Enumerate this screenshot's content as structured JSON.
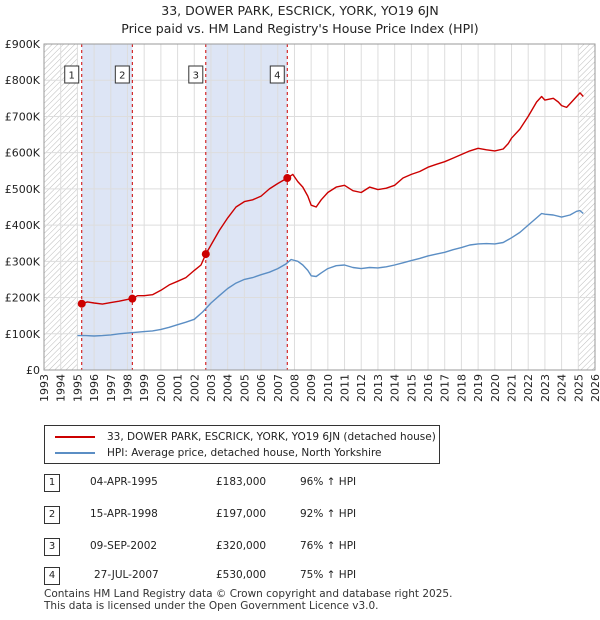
{
  "title_line1": "33, DOWER PARK, ESCRICK, YORK, YO19 6JN",
  "title_line2": "Price paid vs. HM Land Registry's House Price Index (HPI)",
  "legend": {
    "property_label": "33, DOWER PARK, ESCRICK, YORK, YO19 6JN (detached house)",
    "hpi_label": "HPI: Average price, detached house, North Yorkshire"
  },
  "colors": {
    "property": "#cc0000",
    "hpi": "#5b8ec4",
    "shade": "#dde5f5"
  },
  "transactions": [
    {
      "id": "1",
      "date": "04-APR-1995",
      "price": "£183,000",
      "hpi": "96% ↑ HPI"
    },
    {
      "id": "2",
      "date": "15-APR-1998",
      "price": "£197,000",
      "hpi": "92% ↑ HPI"
    },
    {
      "id": "3",
      "date": "09-SEP-2002",
      "price": "£320,000",
      "hpi": "76% ↑ HPI"
    },
    {
      "id": "4",
      "date": "27-JUL-2007",
      "price": "£530,000",
      "hpi": "75% ↑ HPI"
    }
  ],
  "footer_line1": "Contains HM Land Registry data © Crown copyright and database right 2025.",
  "footer_line2": "This data is licensed under the Open Government Licence v3.0.",
  "chart_data": {
    "type": "line",
    "x_range": [
      1993,
      2026
    ],
    "ylim": [
      0,
      900000
    ],
    "y_ticks": [
      "£0",
      "£100K",
      "£200K",
      "£300K",
      "£400K",
      "£500K",
      "£600K",
      "£700K",
      "£800K",
      "£900K"
    ],
    "x_ticks": [
      "1993",
      "1994",
      "1995",
      "1996",
      "1997",
      "1998",
      "1999",
      "2000",
      "2001",
      "2002",
      "2003",
      "2004",
      "2005",
      "2006",
      "2007",
      "2008",
      "2009",
      "2010",
      "2011",
      "2012",
      "2013",
      "2014",
      "2015",
      "2016",
      "2017",
      "2018",
      "2019",
      "2020",
      "2021",
      "2022",
      "2023",
      "2024",
      "2025",
      "2026"
    ],
    "grid": true,
    "shaded_periods": [
      [
        1995.26,
        1998.29
      ],
      [
        2002.69,
        2007.57
      ]
    ],
    "hatched_periods": [
      [
        1993.0,
        1995.0
      ],
      [
        2025.0,
        2026.0
      ]
    ],
    "sales": [
      {
        "label": "1",
        "x": 1995.26,
        "y": 183000
      },
      {
        "label": "2",
        "x": 1998.29,
        "y": 197000
      },
      {
        "label": "3",
        "x": 2002.69,
        "y": 320000
      },
      {
        "label": "4",
        "x": 2007.57,
        "y": 530000
      }
    ],
    "series": [
      {
        "name": "33, DOWER PARK, ESCRICK, YORK, YO19 6JN (detached house)",
        "points": [
          [
            1995.26,
            183000
          ],
          [
            1995.6,
            188000
          ],
          [
            1996.0,
            185000
          ],
          [
            1996.5,
            182000
          ],
          [
            1997.0,
            186000
          ],
          [
            1997.5,
            190000
          ],
          [
            1998.0,
            195000
          ],
          [
            1998.29,
            197000
          ],
          [
            1998.6,
            205000
          ],
          [
            1999.0,
            205000
          ],
          [
            1999.5,
            208000
          ],
          [
            2000.0,
            220000
          ],
          [
            2000.5,
            235000
          ],
          [
            2001.0,
            245000
          ],
          [
            2001.5,
            255000
          ],
          [
            2002.0,
            275000
          ],
          [
            2002.4,
            290000
          ],
          [
            2002.69,
            320000
          ],
          [
            2003.0,
            345000
          ],
          [
            2003.5,
            385000
          ],
          [
            2004.0,
            420000
          ],
          [
            2004.5,
            450000
          ],
          [
            2005.0,
            465000
          ],
          [
            2005.5,
            470000
          ],
          [
            2006.0,
            480000
          ],
          [
            2006.5,
            500000
          ],
          [
            2007.0,
            515000
          ],
          [
            2007.57,
            530000
          ],
          [
            2007.9,
            540000
          ],
          [
            2008.2,
            520000
          ],
          [
            2008.5,
            505000
          ],
          [
            2008.8,
            480000
          ],
          [
            2009.0,
            455000
          ],
          [
            2009.3,
            450000
          ],
          [
            2009.6,
            470000
          ],
          [
            2010.0,
            490000
          ],
          [
            2010.5,
            505000
          ],
          [
            2011.0,
            510000
          ],
          [
            2011.5,
            495000
          ],
          [
            2012.0,
            490000
          ],
          [
            2012.5,
            505000
          ],
          [
            2013.0,
            498000
          ],
          [
            2013.5,
            502000
          ],
          [
            2014.0,
            510000
          ],
          [
            2014.5,
            530000
          ],
          [
            2015.0,
            540000
          ],
          [
            2015.5,
            548000
          ],
          [
            2016.0,
            560000
          ],
          [
            2016.5,
            568000
          ],
          [
            2017.0,
            575000
          ],
          [
            2017.5,
            585000
          ],
          [
            2018.0,
            595000
          ],
          [
            2018.5,
            605000
          ],
          [
            2019.0,
            612000
          ],
          [
            2019.5,
            608000
          ],
          [
            2020.0,
            605000
          ],
          [
            2020.5,
            610000
          ],
          [
            2020.8,
            625000
          ],
          [
            2021.0,
            640000
          ],
          [
            2021.5,
            665000
          ],
          [
            2022.0,
            700000
          ],
          [
            2022.5,
            740000
          ],
          [
            2022.8,
            755000
          ],
          [
            2023.0,
            745000
          ],
          [
            2023.5,
            750000
          ],
          [
            2023.8,
            740000
          ],
          [
            2024.0,
            730000
          ],
          [
            2024.3,
            725000
          ],
          [
            2024.6,
            740000
          ],
          [
            2024.9,
            755000
          ],
          [
            2025.1,
            765000
          ],
          [
            2025.3,
            755000
          ]
        ]
      },
      {
        "name": "HPI: Average price, detached house, North Yorkshire",
        "points": [
          [
            1995.0,
            95000
          ],
          [
            1995.5,
            95000
          ],
          [
            1996.0,
            94000
          ],
          [
            1996.5,
            95000
          ],
          [
            1997.0,
            97000
          ],
          [
            1997.5,
            100000
          ],
          [
            1998.0,
            102000
          ],
          [
            1998.5,
            104000
          ],
          [
            1999.0,
            106000
          ],
          [
            1999.5,
            108000
          ],
          [
            2000.0,
            112000
          ],
          [
            2000.5,
            118000
          ],
          [
            2001.0,
            125000
          ],
          [
            2001.5,
            132000
          ],
          [
            2002.0,
            140000
          ],
          [
            2002.5,
            160000
          ],
          [
            2003.0,
            185000
          ],
          [
            2003.5,
            205000
          ],
          [
            2004.0,
            225000
          ],
          [
            2004.5,
            240000
          ],
          [
            2005.0,
            250000
          ],
          [
            2005.5,
            255000
          ],
          [
            2006.0,
            263000
          ],
          [
            2006.5,
            270000
          ],
          [
            2007.0,
            280000
          ],
          [
            2007.5,
            293000
          ],
          [
            2007.8,
            305000
          ],
          [
            2008.2,
            300000
          ],
          [
            2008.5,
            290000
          ],
          [
            2008.8,
            275000
          ],
          [
            2009.0,
            260000
          ],
          [
            2009.3,
            258000
          ],
          [
            2009.6,
            268000
          ],
          [
            2010.0,
            280000
          ],
          [
            2010.5,
            288000
          ],
          [
            2011.0,
            290000
          ],
          [
            2011.5,
            283000
          ],
          [
            2012.0,
            280000
          ],
          [
            2012.5,
            283000
          ],
          [
            2013.0,
            282000
          ],
          [
            2013.5,
            285000
          ],
          [
            2014.0,
            290000
          ],
          [
            2014.5,
            296000
          ],
          [
            2015.0,
            302000
          ],
          [
            2015.5,
            308000
          ],
          [
            2016.0,
            315000
          ],
          [
            2016.5,
            320000
          ],
          [
            2017.0,
            325000
          ],
          [
            2017.5,
            332000
          ],
          [
            2018.0,
            338000
          ],
          [
            2018.5,
            345000
          ],
          [
            2019.0,
            348000
          ],
          [
            2019.5,
            349000
          ],
          [
            2020.0,
            348000
          ],
          [
            2020.5,
            352000
          ],
          [
            2021.0,
            365000
          ],
          [
            2021.5,
            380000
          ],
          [
            2022.0,
            400000
          ],
          [
            2022.5,
            420000
          ],
          [
            2022.8,
            432000
          ],
          [
            2023.0,
            430000
          ],
          [
            2023.5,
            428000
          ],
          [
            2024.0,
            422000
          ],
          [
            2024.5,
            428000
          ],
          [
            2024.9,
            438000
          ],
          [
            2025.1,
            440000
          ],
          [
            2025.3,
            432000
          ]
        ]
      }
    ]
  }
}
